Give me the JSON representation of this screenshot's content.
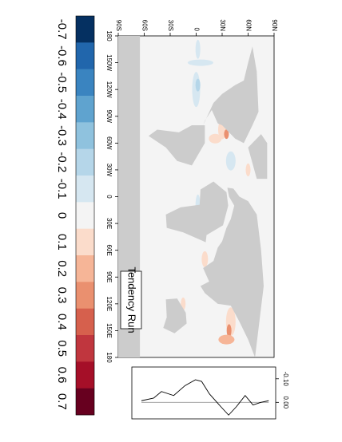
{
  "map": {
    "title": "Tendency Run",
    "lon_ticks": [
      {
        "value": -180,
        "label": "180"
      },
      {
        "value": -150,
        "label": "150W"
      },
      {
        "value": -120,
        "label": "120W"
      },
      {
        "value": -90,
        "label": "90W"
      },
      {
        "value": -60,
        "label": "60W"
      },
      {
        "value": -30,
        "label": "30W"
      },
      0,
      {
        "value": 30,
        "label": "30E"
      },
      {
        "value": 60,
        "label": "60E"
      },
      {
        "value": 90,
        "label": "90E"
      },
      {
        "value": 120,
        "label": "120E"
      },
      {
        "value": 150,
        "label": "150E"
      },
      180
    ],
    "lat_ticks": [
      {
        "value": -90,
        "label": "90S"
      },
      {
        "value": -60,
        "label": "60S"
      },
      {
        "value": -30,
        "label": "30S"
      },
      0,
      {
        "value": 30,
        "label": "30N"
      },
      {
        "value": 60,
        "label": "60N"
      },
      {
        "value": 90,
        "label": "90N"
      }
    ]
  },
  "colorbar": {
    "levels": [
      -0.7,
      -0.6,
      -0.5,
      -0.4,
      -0.3,
      -0.2,
      -0.1,
      0,
      0.1,
      0.2,
      0.3,
      0.4,
      0.5,
      0.6,
      0.7
    ],
    "colors": [
      "#053061",
      "#2166ac",
      "#3a84c0",
      "#5fa3cf",
      "#8fc2de",
      "#b5d6e9",
      "#d6e7f1",
      "#f4f4f4",
      "#fbdccb",
      "#f6b597",
      "#ea906f",
      "#d6604d",
      "#c0363e",
      "#a50f28",
      "#67001f"
    ]
  },
  "chart_data": {
    "type": "line",
    "x": [
      -64,
      -50,
      -41,
      -27,
      -14,
      -2,
      5,
      14,
      27,
      36,
      45,
      55,
      64,
      73,
      82
    ],
    "values": [
      -0.007,
      -0.018,
      -0.046,
      -0.029,
      -0.071,
      -0.096,
      -0.089,
      -0.036,
      0.018,
      0.054,
      0.018,
      -0.029,
      0.011,
      0,
      -0.007
    ],
    "xlim": [
      -75,
      90
    ],
    "ylim": [
      -0.15,
      0.07
    ],
    "yticks": [
      {
        "value": -0.1,
        "label": "-0.10"
      },
      {
        "value": 0,
        "label": "0.00"
      }
    ],
    "color": "#000000"
  }
}
